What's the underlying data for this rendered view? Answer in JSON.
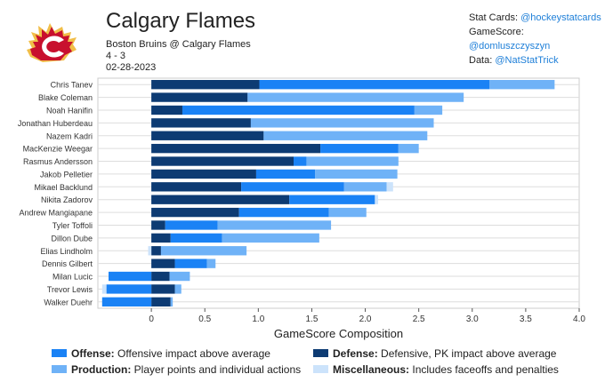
{
  "header": {
    "team": "Calgary Flames",
    "matchup": "Boston Bruins @ Calgary Flames",
    "score": "4 - 3",
    "date": "02-28-2023",
    "logo_name": "flaming-c-logo"
  },
  "credits": [
    {
      "label": "Stat Cards:",
      "handle": "@hockeystatcards"
    },
    {
      "label": "GameScore:",
      "handle": "@domluszczyszyn"
    },
    {
      "label": "Data:",
      "handle": "@NatStatTrick"
    }
  ],
  "colors": {
    "defense": "#0d3b73",
    "offense": "#1a82f5",
    "production": "#6fb2f7",
    "misc": "#cce3fb",
    "grid": "#dddddd"
  },
  "legend": [
    {
      "key": "offense",
      "title": "Offense:",
      "desc": "Offensive impact above average"
    },
    {
      "key": "defense",
      "title": "Defense:",
      "desc": "Defensive, PK impact above average"
    },
    {
      "key": "production",
      "title": "Production:",
      "desc": "Player points and individual actions"
    },
    {
      "key": "misc",
      "title": "Miscellaneous:",
      "desc": "Includes faceoffs and penalties"
    }
  ],
  "chart_data": {
    "type": "bar",
    "orientation": "horizontal",
    "stacked": true,
    "xlabel": "GameScore Composition",
    "xlim": [
      -0.5,
      4.0
    ],
    "xticks": [
      0,
      0.5,
      1.0,
      1.5,
      2.0,
      2.5,
      3.0,
      3.5,
      4.0
    ],
    "xtick_labels": [
      "0",
      "0.5",
      "1.0",
      "1.5",
      "2.0",
      "2.5",
      "3.0",
      "3.5",
      "4.0"
    ],
    "series_order": [
      "defense",
      "offense",
      "production",
      "misc"
    ],
    "categories": [
      "Chris Tanev",
      "Blake Coleman",
      "Noah Hanifin",
      "Jonathan Huberdeau",
      "Nazem Kadri",
      "MacKenzie Weegar",
      "Rasmus Andersson",
      "Jakob Pelletier",
      "Mikael Backlund",
      "Nikita Zadorov",
      "Andrew Mangiapane",
      "Tyler Toffoli",
      "Dillon Dube",
      "Elias Lindholm",
      "Dennis Gilbert",
      "Milan Lucic",
      "Trevor Lewis",
      "Walker Duehr"
    ],
    "series": [
      {
        "name": "defense",
        "values": [
          1.01,
          0.9,
          0.29,
          0.93,
          1.05,
          1.58,
          1.33,
          0.98,
          0.84,
          1.29,
          0.82,
          0.13,
          0.18,
          0.09,
          0.22,
          0.17,
          0.22,
          0.18
        ]
      },
      {
        "name": "offense",
        "values": [
          2.15,
          0.0,
          2.17,
          0.0,
          0.0,
          0.73,
          0.12,
          0.55,
          0.96,
          0.8,
          0.84,
          0.49,
          0.48,
          0.0,
          0.3,
          -0.4,
          -0.42,
          -0.46
        ]
      },
      {
        "name": "production",
        "values": [
          0.61,
          2.02,
          0.26,
          1.71,
          1.53,
          0.19,
          0.86,
          0.77,
          0.4,
          0.0,
          0.35,
          1.06,
          0.91,
          0.8,
          0.08,
          0.19,
          0.06,
          0.02
        ]
      },
      {
        "name": "misc",
        "values": [
          0.0,
          0.0,
          0.0,
          0.0,
          0.0,
          0.0,
          0.0,
          0.0,
          0.06,
          0.03,
          0.0,
          0.0,
          0.0,
          -0.03,
          0.0,
          0.0,
          -0.04,
          0.0
        ]
      }
    ]
  }
}
